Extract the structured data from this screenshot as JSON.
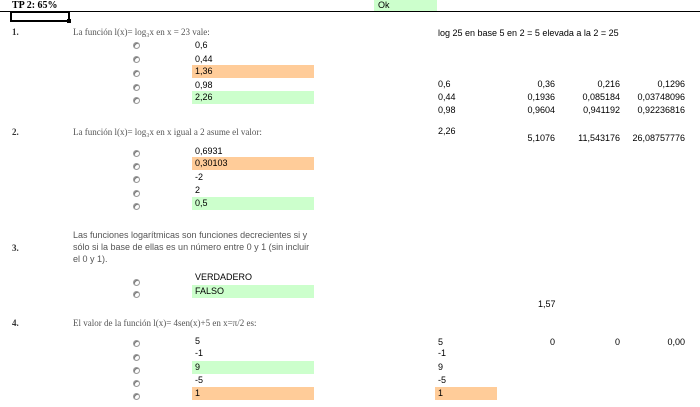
{
  "header": {
    "title": "TP 2: 65%",
    "ok_label": "Ok"
  },
  "colors": {
    "wrong_answer": "#ffcc99",
    "right_answer": "#ccffcc"
  },
  "questions": [
    {
      "number": "1.",
      "text": "La función l(x)= log₃x en x = 23 vale:",
      "options": [
        "0,6",
        "0,44",
        "1,36",
        "0,98",
        "2,26"
      ],
      "option_states": [
        "none",
        "none",
        "wrong",
        "none",
        "right"
      ]
    },
    {
      "number": "2.",
      "text": "La función l(x)= log₃x en x igual a 2 asume el valor:",
      "options": [
        "0,6931",
        "0,30103",
        "-2",
        "2",
        "0,5"
      ],
      "option_states": [
        "none",
        "wrong",
        "none",
        "none",
        "right"
      ]
    },
    {
      "number": "3.",
      "text": "Las funciones logarítmicas son funciones decrecientes si y sólo si la base de ellas es un número entre 0 y 1 (sin incluir el 0 y 1).",
      "options": [
        "VERDADERO",
        "FALSO"
      ],
      "option_states": [
        "none",
        "right"
      ]
    },
    {
      "number": "4.",
      "text": "El valor de la función l(x)= 4sen(x)+5 en x=π/2 es:",
      "options": [
        "5",
        "-1",
        "9",
        "-5",
        "1"
      ],
      "option_states": [
        "none",
        "none",
        "right",
        "none",
        "wrong"
      ]
    }
  ],
  "side_notes": {
    "note1": "log 25 en base 5 en 2 = 5 elevada a la 2 = 25",
    "table1": [
      [
        "0,6",
        "0,36",
        "0,216",
        "0,1296"
      ],
      [
        "0,44",
        "0,1936",
        "0,085184",
        "0,03748096"
      ],
      [
        "0,98",
        "0,9604",
        "0,941192",
        "0,92236816"
      ]
    ],
    "table2": [
      [
        "2,26",
        "5,1076",
        "11,543176",
        "26,08757776"
      ]
    ],
    "value_157": "1,57",
    "table4_row": [
      "5",
      "0",
      "0",
      "0,00"
    ],
    "table4_col": [
      "-1",
      "9",
      "-5",
      "1"
    ]
  }
}
